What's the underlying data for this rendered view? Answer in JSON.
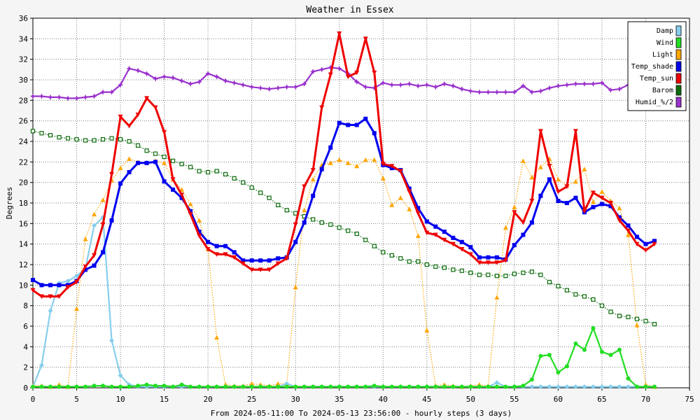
{
  "chart_data": {
    "type": "line",
    "title": "Weather in Essex",
    "xlabel": "From 2024-05-11:00 To 2024-05-13 23:56:00 - hourly steps (3 days)",
    "ylabel": "Degrees",
    "xlim": [
      0,
      75
    ],
    "ylim": [
      0,
      36
    ],
    "x_ticks": [
      0,
      5,
      10,
      15,
      20,
      25,
      30,
      35,
      40,
      45,
      50,
      55,
      60,
      65,
      70,
      75
    ],
    "y_ticks": [
      0,
      2,
      4,
      6,
      8,
      10,
      12,
      14,
      16,
      18,
      20,
      22,
      24,
      26,
      28,
      30,
      32,
      34,
      36
    ],
    "grid": true,
    "legend_position": "top-right",
    "series": [
      {
        "name": "Damp",
        "color": "#87ceeb",
        "line": "solid",
        "marker": "diamond",
        "values": [
          0.1,
          2.2,
          7.5,
          10.2,
          10.4,
          10.9,
          11.6,
          15.8,
          16.6,
          4.6,
          1.2,
          0.3,
          0.1,
          0.1,
          0.1,
          0.1,
          0.1,
          0.1,
          0.1,
          0.1,
          0.1,
          0.1,
          0.1,
          0.1,
          0.1,
          0.1,
          0.1,
          0.1,
          0.1,
          0.4,
          0.1,
          0.1,
          0.1,
          0.1,
          0.1,
          0.1,
          0.1,
          0.1,
          0.1,
          0.1,
          0.1,
          0.1,
          0.1,
          0.1,
          0.1,
          0.1,
          0.1,
          0.1,
          0.1,
          0.1,
          0.1,
          0.1,
          0.1,
          0.5,
          0.1,
          0.1,
          0.1,
          0.1,
          0.1,
          0.1,
          0.1,
          0.1,
          0.1,
          0.1,
          0.1,
          0.1,
          0.1,
          0.1,
          0.1,
          0.1,
          0.1,
          0.1
        ]
      },
      {
        "name": "Wind",
        "color": "#22dd22",
        "line": "solid",
        "marker": "circle",
        "values": [
          0.1,
          0.1,
          0.1,
          0.1,
          0.1,
          0.1,
          0.1,
          0.2,
          0.2,
          0.1,
          0.1,
          0.1,
          0.2,
          0.3,
          0.2,
          0.2,
          0.1,
          0.3,
          0.1,
          0.1,
          0.1,
          0.1,
          0.1,
          0.1,
          0.1,
          0.1,
          0.1,
          0.1,
          0.1,
          0.1,
          0.1,
          0.1,
          0.1,
          0.1,
          0.1,
          0.1,
          0.1,
          0.1,
          0.1,
          0.2,
          0.1,
          0.1,
          0.1,
          0.1,
          0.1,
          0.1,
          0.1,
          0.1,
          0.1,
          0.1,
          0.1,
          0.1,
          0.1,
          0.1,
          0.1,
          0.1,
          0.2,
          0.8,
          3.1,
          3.2,
          1.5,
          2.1,
          4.3,
          3.7,
          5.8,
          3.5,
          3.2,
          3.7,
          0.9,
          0.1,
          0.1,
          0.1
        ]
      },
      {
        "name": "Light",
        "color": "#ffa500",
        "line": "dotted",
        "marker": "triangle",
        "values": [
          0.2,
          0.2,
          0.1,
          0.3,
          0.1,
          7.7,
          14.5,
          16.9,
          18.3,
          20.2,
          21.4,
          22.3,
          22.0,
          21.9,
          22.1,
          21.9,
          20.3,
          19.3,
          17.9,
          16.3,
          13.5,
          4.9,
          0.3,
          0.2,
          0.2,
          0.4,
          0.3,
          0.2,
          0.4,
          0.4,
          9.8,
          17.3,
          20.3,
          21.7,
          21.9,
          22.2,
          21.9,
          21.6,
          22.2,
          22.2,
          20.4,
          17.8,
          18.5,
          17.4,
          14.8,
          5.6,
          0.2,
          0.3,
          0.2,
          0.1,
          0.2,
          0.3,
          0.2,
          8.8,
          15.6,
          17.6,
          22.1,
          20.5,
          21.5,
          22.3,
          20.3,
          19.7,
          20.1,
          21.3,
          18.1,
          19.1,
          18.2,
          17.5,
          14.9,
          6.1,
          0.3,
          0.1
        ]
      },
      {
        "name": "Temp_shade",
        "color": "#0000ee",
        "line": "thick",
        "marker": "square",
        "values": [
          10.5,
          10.0,
          10.0,
          10.0,
          10.0,
          10.4,
          11.5,
          11.9,
          13.2,
          16.3,
          19.9,
          21.0,
          21.9,
          21.9,
          22.0,
          20.1,
          19.3,
          18.5,
          17.2,
          15.2,
          14.2,
          13.8,
          13.8,
          13.2,
          12.4,
          12.4,
          12.4,
          12.4,
          12.6,
          12.7,
          14.2,
          16.1,
          18.7,
          21.3,
          23.4,
          25.8,
          25.6,
          25.6,
          26.2,
          24.8,
          21.7,
          21.4,
          21.2,
          19.4,
          17.5,
          16.2,
          15.7,
          15.2,
          14.6,
          14.2,
          13.7,
          12.7,
          12.7,
          12.7,
          12.5,
          13.9,
          14.9,
          16.1,
          18.7,
          20.3,
          18.2,
          18.0,
          18.5,
          17.1,
          17.6,
          17.9,
          17.7,
          16.6,
          15.8,
          14.7,
          14.0,
          14.3
        ]
      },
      {
        "name": "Temp_sun",
        "color": "#ee0000",
        "line": "thick",
        "marker": "triangle-down",
        "values": [
          9.5,
          8.9,
          8.9,
          8.9,
          9.8,
          10.3,
          11.8,
          12.9,
          15.9,
          20.8,
          26.4,
          25.5,
          26.6,
          28.2,
          27.3,
          24.9,
          20.3,
          18.8,
          16.9,
          14.8,
          13.5,
          13.0,
          13.0,
          12.7,
          12.1,
          11.5,
          11.5,
          11.5,
          12.1,
          12.6,
          15.9,
          19.6,
          21.2,
          27.3,
          30.5,
          34.5,
          30.3,
          30.7,
          34.0,
          30.7,
          21.8,
          21.6,
          21.1,
          19.1,
          17.0,
          15.1,
          14.9,
          14.4,
          14.0,
          13.5,
          13.0,
          12.2,
          12.2,
          12.2,
          12.4,
          17.1,
          16.1,
          18.2,
          25.0,
          21.6,
          19.1,
          19.6,
          25.0,
          17.2,
          19.0,
          18.5,
          18.0,
          16.3,
          15.3,
          14.0,
          13.4,
          14.0
        ]
      },
      {
        "name": "Barom",
        "color": "#0b6b0b",
        "line": "dotted",
        "marker": "hollow-square",
        "values": [
          25.0,
          24.8,
          24.6,
          24.4,
          24.3,
          24.2,
          24.1,
          24.1,
          24.2,
          24.3,
          24.2,
          24.0,
          23.6,
          23.1,
          22.8,
          22.5,
          22.1,
          21.8,
          21.5,
          21.1,
          21.0,
          21.1,
          20.8,
          20.4,
          20.0,
          19.5,
          19.0,
          18.5,
          17.8,
          17.3,
          17.0,
          16.7,
          16.4,
          16.1,
          15.9,
          15.6,
          15.3,
          15.0,
          14.4,
          13.8,
          13.2,
          12.9,
          12.6,
          12.3,
          12.3,
          12.0,
          11.8,
          11.7,
          11.5,
          11.4,
          11.2,
          11.0,
          11.0,
          10.9,
          10.9,
          11.1,
          11.2,
          11.3,
          11.0,
          10.3,
          9.9,
          9.5,
          9.1,
          8.9,
          8.6,
          8.0,
          7.4,
          7.0,
          6.9,
          6.7,
          6.5,
          6.2
        ]
      },
      {
        "name": "Humid_%/2",
        "color": "#9a32cd",
        "line": "solid",
        "marker": "star",
        "values": [
          28.4,
          28.4,
          28.3,
          28.3,
          28.2,
          28.2,
          28.3,
          28.4,
          28.8,
          28.8,
          29.5,
          31.1,
          30.9,
          30.6,
          30.1,
          30.3,
          30.2,
          29.9,
          29.6,
          29.8,
          30.6,
          30.3,
          29.9,
          29.7,
          29.5,
          29.3,
          29.2,
          29.1,
          29.2,
          29.3,
          29.3,
          29.6,
          30.8,
          31.0,
          31.2,
          31.1,
          30.6,
          29.8,
          29.3,
          29.2,
          29.7,
          29.5,
          29.5,
          29.6,
          29.4,
          29.5,
          29.3,
          29.6,
          29.4,
          29.1,
          28.9,
          28.8,
          28.8,
          28.8,
          28.8,
          28.8,
          29.4,
          28.8,
          28.9,
          29.2,
          29.4,
          29.5,
          29.6,
          29.6,
          29.6,
          29.7,
          29.0,
          29.1,
          29.5,
          29.9,
          29.6,
          29.4
        ]
      }
    ]
  }
}
